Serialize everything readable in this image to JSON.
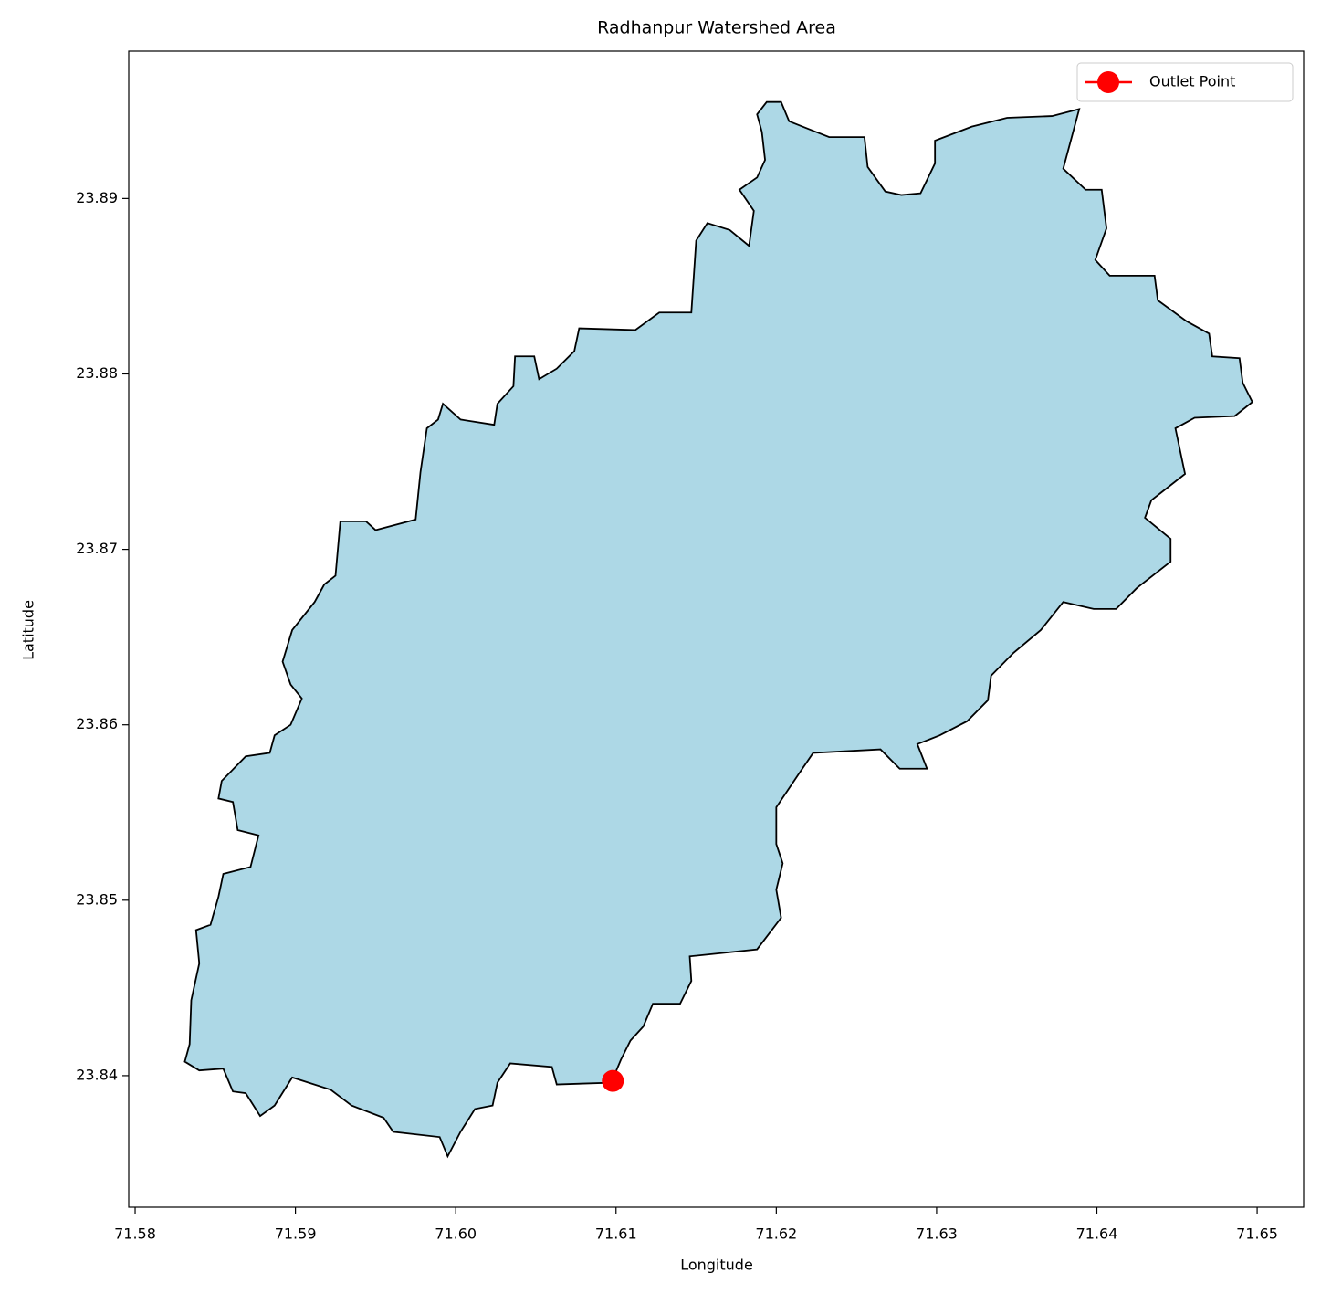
{
  "chart_data": {
    "type": "map",
    "title": "Radhanpur Watershed Area",
    "xlabel": "Longitude",
    "ylabel": "Latitude",
    "xlim": [
      71.5796,
      71.6529
    ],
    "ylim": [
      23.8325,
      23.8984
    ],
    "xticks": [
      71.58,
      71.59,
      {
        "value": 71.6,
        "label": "71.60"
      },
      71.61,
      71.62,
      71.63,
      71.64,
      71.65
    ],
    "yticks": [
      23.84,
      23.85,
      23.86,
      23.87,
      23.88,
      23.89
    ],
    "legend": "upper right",
    "boundary": {
      "color": "#add8e6",
      "edgecolor": "#000000",
      "x": [
        71.6188,
        71.6194,
        71.6203,
        71.6208,
        71.6233,
        71.6255,
        71.6257,
        71.6268,
        71.6278,
        71.629,
        71.6299,
        71.6299,
        71.6322,
        71.6344,
        71.6372,
        71.6389,
        71.6379,
        71.6393,
        71.6403,
        71.6406,
        71.6399,
        71.6408,
        71.6436,
        71.6438,
        71.6456,
        71.647,
        71.6472,
        71.6489,
        71.6491,
        71.6497,
        71.6486,
        71.6461,
        71.6449,
        71.6455,
        71.6434,
        71.643,
        71.6446,
        71.6446,
        71.6425,
        71.6412,
        71.6398,
        71.6379,
        71.6365,
        71.6348,
        71.6334,
        71.6332,
        71.6319,
        71.6302,
        71.6288,
        71.6294,
        71.6277,
        71.6265,
        71.6223,
        71.6214,
        71.62,
        71.62,
        71.6204,
        71.62,
        71.6203,
        71.6188,
        71.6146,
        71.6147,
        71.614,
        71.6123,
        71.6117,
        71.6109,
        71.6103,
        71.6097,
        71.6063,
        71.606,
        71.6034,
        71.6026,
        71.6023,
        71.6012,
        71.6003,
        71.5995,
        71.599,
        71.5961,
        71.5955,
        71.5935,
        71.5922,
        71.5898,
        71.5887,
        71.5878,
        71.5869,
        71.5861,
        71.5855,
        71.584,
        71.5831,
        71.5834,
        71.5835,
        71.584,
        71.5838,
        71.5847,
        71.5852,
        71.5855,
        71.5872,
        71.5877,
        71.5864,
        71.5861,
        71.5852,
        71.5854,
        71.5869,
        71.5884,
        71.5887,
        71.5897,
        71.5904,
        71.5897,
        71.5892,
        71.5898,
        71.5912,
        71.5918,
        71.5925,
        71.5928,
        71.5944,
        71.595,
        71.5975,
        71.5978,
        71.5982,
        71.5989,
        71.5992,
        71.6003,
        71.6024,
        71.6026,
        71.6036,
        71.6037,
        71.6049,
        71.6052,
        71.6063,
        71.6074,
        71.6077,
        71.6112,
        71.6127,
        71.6147,
        71.615,
        71.6157,
        71.6171,
        71.6183,
        71.6186,
        71.6177,
        71.6188,
        71.6193,
        71.6191
      ],
      "y": [
        23.8948,
        23.8955,
        23.8955,
        23.8944,
        23.8935,
        23.8935,
        23.8918,
        23.8904,
        23.8902,
        23.8903,
        23.892,
        23.8933,
        23.8941,
        23.8946,
        23.8947,
        23.8951,
        23.8917,
        23.8905,
        23.8905,
        23.8883,
        23.8865,
        23.8856,
        23.8856,
        23.8842,
        23.883,
        23.8823,
        23.881,
        23.8809,
        23.8795,
        23.8784,
        23.8776,
        23.8775,
        23.8769,
        23.8743,
        23.8728,
        23.8718,
        23.8706,
        23.8693,
        23.8678,
        23.8666,
        23.8666,
        23.867,
        23.8654,
        23.8641,
        23.8628,
        23.8614,
        23.8602,
        23.8594,
        23.8589,
        23.8575,
        23.8575,
        23.8586,
        23.8584,
        23.8572,
        23.8553,
        23.8532,
        23.8521,
        23.8506,
        23.849,
        23.8472,
        23.8468,
        23.8454,
        23.8441,
        23.8441,
        23.8428,
        23.842,
        23.8409,
        23.8396,
        23.8395,
        23.8405,
        23.8407,
        23.8396,
        23.8383,
        23.8381,
        23.8368,
        23.8354,
        23.8365,
        23.8368,
        23.8376,
        23.8383,
        23.8392,
        23.8399,
        23.8383,
        23.8377,
        23.839,
        23.8391,
        23.8404,
        23.8403,
        23.8408,
        23.8418,
        23.8443,
        23.8464,
        23.8483,
        23.8486,
        23.8502,
        23.8515,
        23.8519,
        23.8537,
        23.854,
        23.8556,
        23.8558,
        23.8568,
        23.8582,
        23.8584,
        23.8594,
        23.86,
        23.8615,
        23.8623,
        23.8636,
        23.8654,
        23.867,
        23.868,
        23.8685,
        23.8716,
        23.8716,
        23.8711,
        23.8717,
        23.8744,
        23.8769,
        23.8774,
        23.8783,
        23.8774,
        23.8771,
        23.8783,
        23.8793,
        23.881,
        23.881,
        23.8797,
        23.8803,
        23.8813,
        23.8826,
        23.8825,
        23.8835,
        23.8835,
        23.8876,
        23.8886,
        23.8882,
        23.8873,
        23.8893,
        23.8905,
        23.8912,
        23.8922,
        23.8938
      ]
    },
    "series": [
      {
        "name": "Outlet Point",
        "color": "#ff0000",
        "x": [
          71.6098
        ],
        "y": [
          23.8397
        ]
      }
    ]
  }
}
